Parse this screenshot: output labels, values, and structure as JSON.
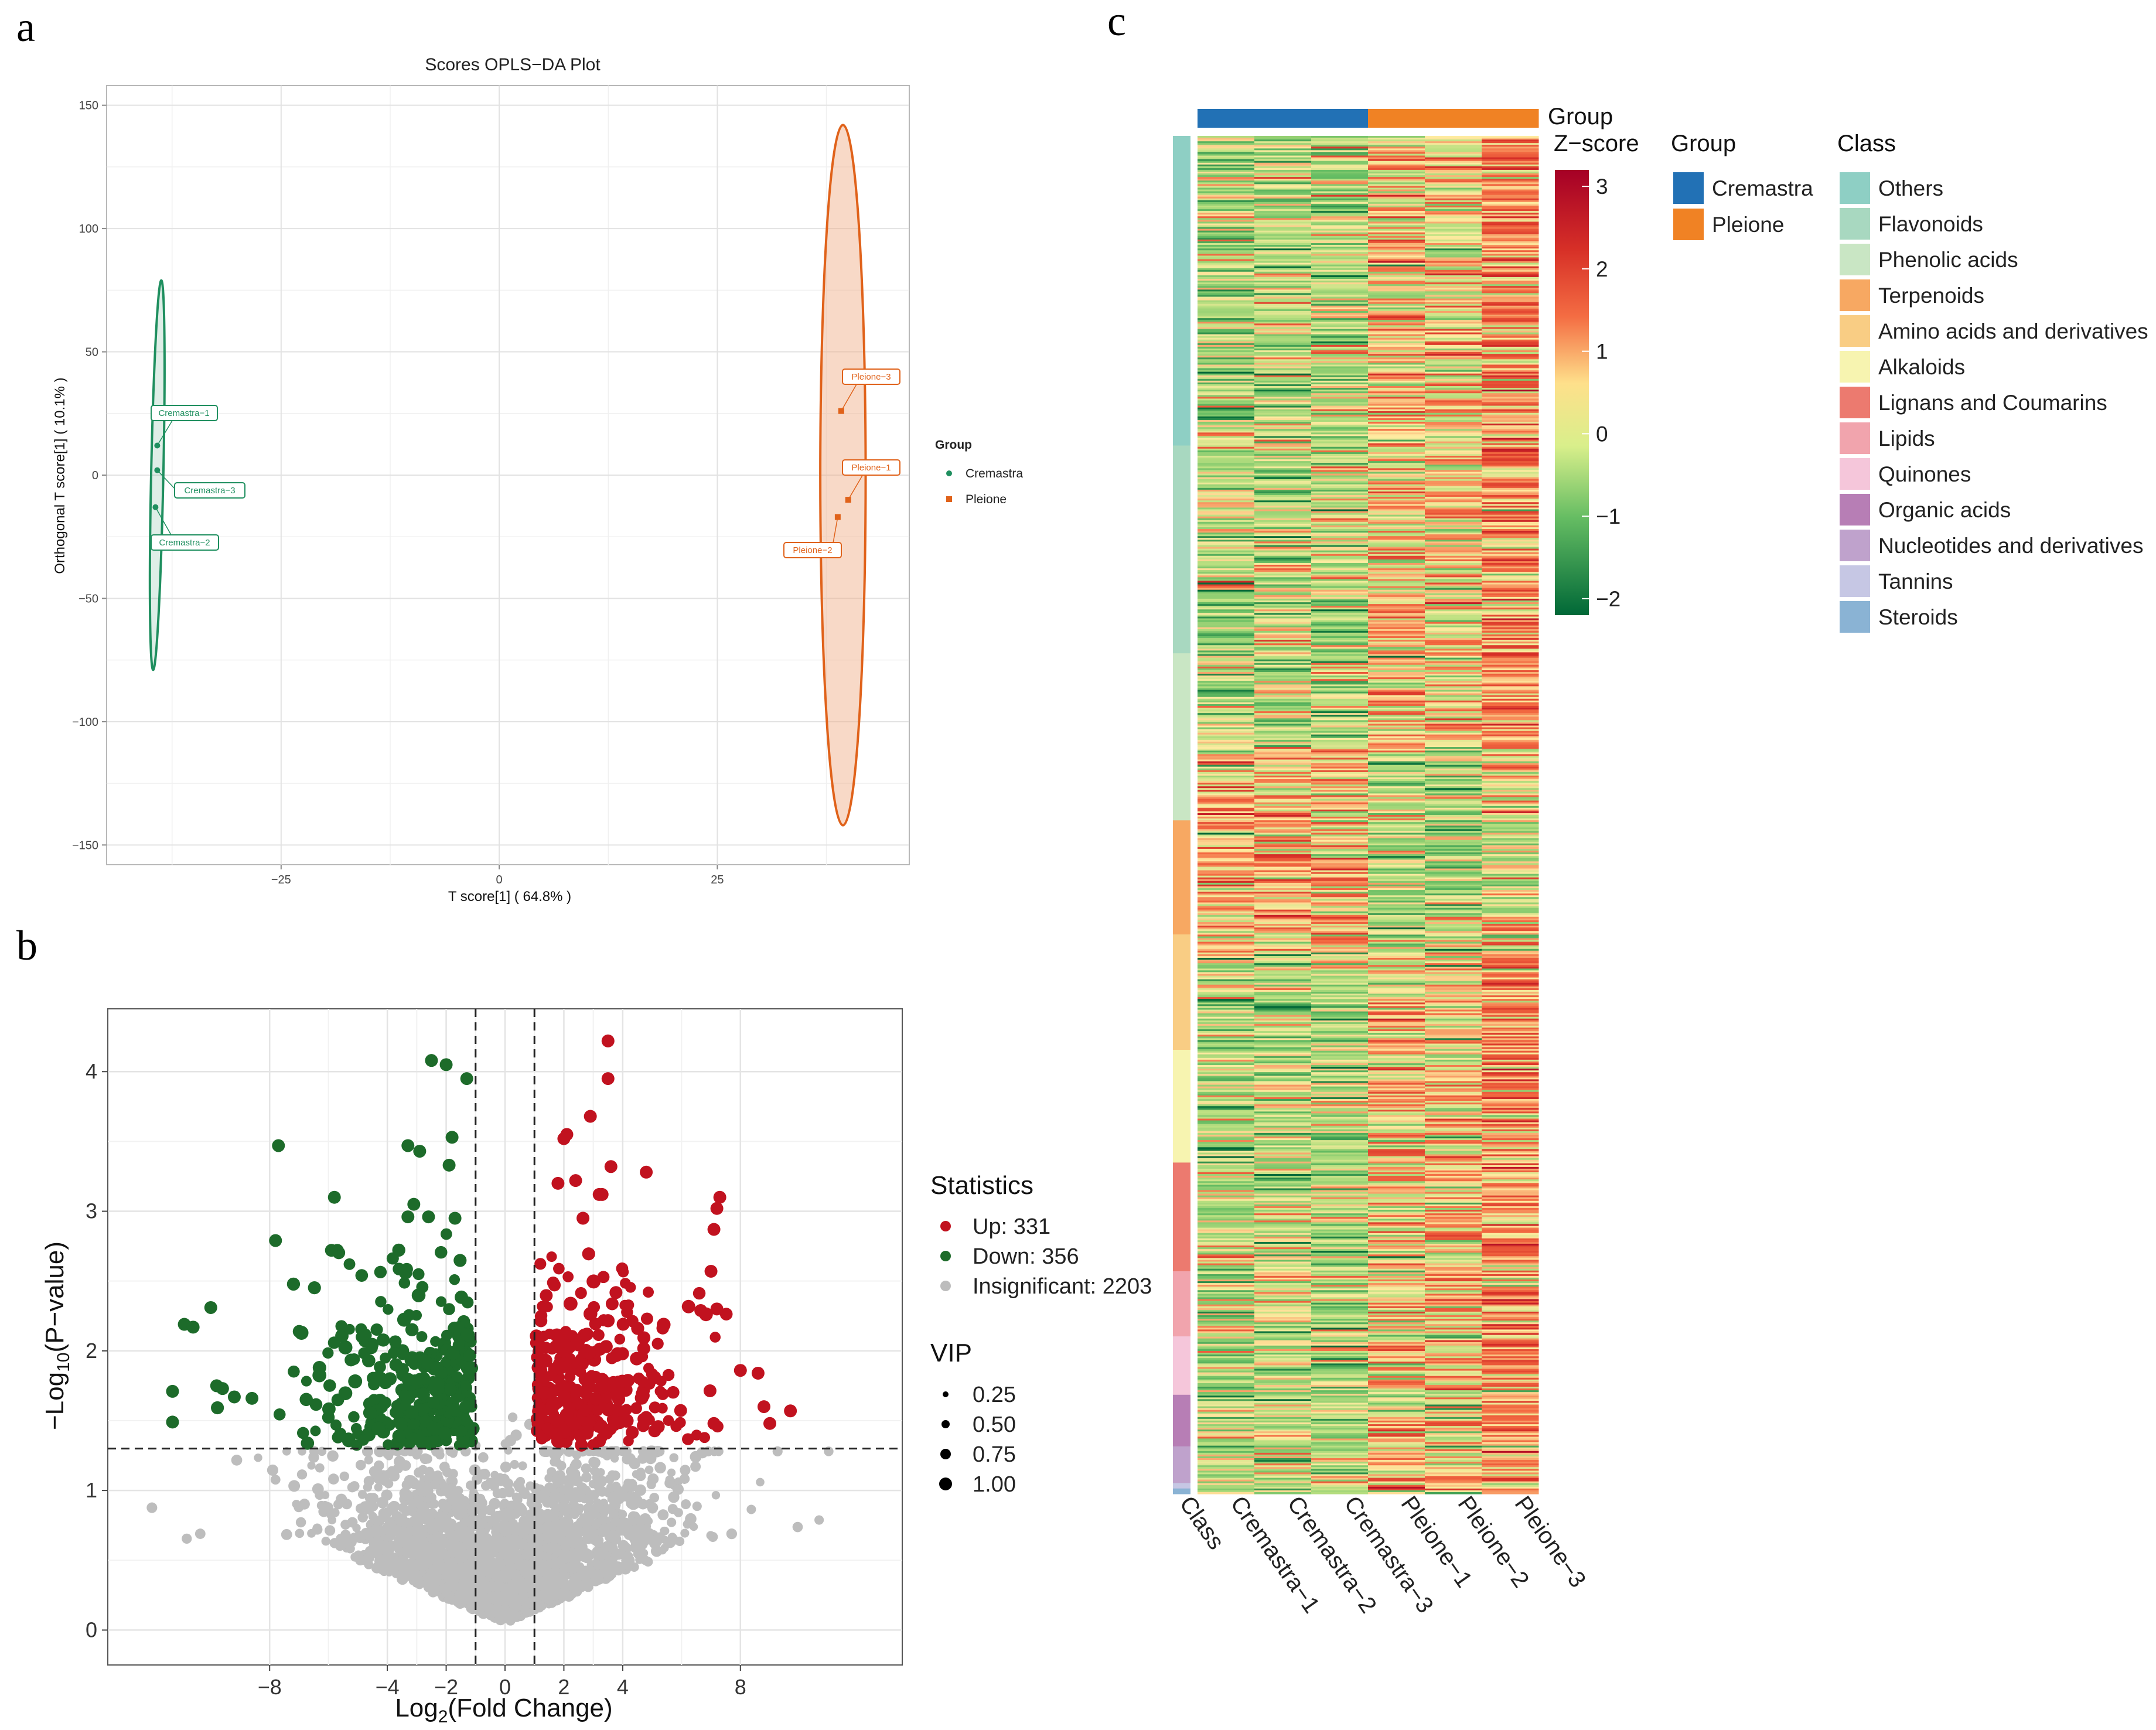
{
  "panels": {
    "a": "a",
    "b": "b",
    "c": "c"
  },
  "colors": {
    "cremastra": "#1f8f5f",
    "pleione": "#e0621a",
    "up": "#c1121f",
    "down": "#1d6b2a",
    "insignificant": "#bdbdbd",
    "group_cremastra": "#2271b5",
    "group_pleione": "#f08224"
  },
  "chart_data": [
    {
      "type": "scatter",
      "title": "Scores OPLS−DA Plot",
      "xlabel": "T score[1] ( 64.8% )",
      "ylabel": "Orthogonal T score[1] ( 10.1% )",
      "xlim": [
        -45,
        47
      ],
      "ylim": [
        -158,
        158
      ],
      "x_ticks": [
        -25,
        0,
        25
      ],
      "x_tick_labels": [
        "−25",
        "0",
        "25"
      ],
      "y_ticks": [
        150,
        100,
        50,
        0,
        -50,
        -100,
        -150
      ],
      "y_tick_labels": [
        "150",
        "100",
        "50",
        "0",
        "−50",
        "−100",
        "−150"
      ],
      "legend_title": "Group",
      "series": [
        {
          "name": "Cremastra",
          "points": [
            {
              "label": "Cremastra−1",
              "x": -39.2,
              "y": 12
            },
            {
              "label": "Cremastra−3",
              "x": -39.2,
              "y": 2
            },
            {
              "label": "Cremastra−2",
              "x": -39.4,
              "y": -13
            }
          ],
          "ellipse": {
            "cx": -39.2,
            "cy": 0,
            "ry": 79,
            "rx": 0.7
          }
        },
        {
          "name": "Pleione",
          "points": [
            {
              "label": "Pleione−3",
              "x": 39.2,
              "y": 26
            },
            {
              "label": "Pleione−1",
              "x": 40.0,
              "y": -10
            },
            {
              "label": "Pleione−2",
              "x": 38.8,
              "y": -17
            }
          ],
          "ellipse": {
            "cx": 39.4,
            "cy": 0,
            "ry": 142,
            "rx": 2.6
          }
        }
      ]
    },
    {
      "type": "scatter",
      "xlabel_main": "Log",
      "xlabel_sub": "2",
      "xlabel_rest": "(Fold Change)",
      "ylabel_pre": "−Log",
      "ylabel_sub": "10",
      "ylabel_rest": "(P−value)",
      "xlim": [
        -13.5,
        13.5
      ],
      "ylim": [
        -0.25,
        4.45
      ],
      "x_ticks": [
        -8,
        -4,
        -2,
        0,
        2,
        4,
        8
      ],
      "x_tick_labels": [
        "−8",
        "−4",
        "−2",
        "0",
        "2",
        "4",
        "8"
      ],
      "y_ticks": [
        0,
        1,
        2,
        3,
        4
      ],
      "y_tick_labels": [
        "0",
        "1",
        "2",
        "3",
        "4"
      ],
      "thresholds": {
        "log2fc": [
          -1,
          1
        ],
        "neglog10p": 1.3
      },
      "legend_stats_title": "Statistics",
      "legend_stats": [
        {
          "key": "up",
          "label": "Up: 331",
          "count": 331
        },
        {
          "key": "down",
          "label": "Down: 356",
          "count": 356
        },
        {
          "key": "insignificant",
          "label": "Insignificant: 2203",
          "count": 2203
        }
      ],
      "legend_vip_title": "VIP",
      "legend_vip": [
        "0.25",
        "0.50",
        "0.75",
        "1.00"
      ],
      "highlight_points": {
        "up": [
          [
            3.5,
            4.22
          ],
          [
            3.5,
            3.95
          ],
          [
            2.9,
            3.68
          ],
          [
            2.1,
            3.55
          ],
          [
            2.0,
            3.52
          ],
          [
            3.6,
            3.32
          ],
          [
            4.8,
            3.28
          ],
          [
            7.3,
            3.1
          ],
          [
            7.2,
            3.02
          ],
          [
            7.1,
            2.87
          ],
          [
            2.4,
            3.22
          ],
          [
            1.8,
            3.2
          ],
          [
            3.2,
            3.12
          ],
          [
            3.3,
            3.12
          ],
          [
            7.0,
            2.57
          ],
          [
            7.2,
            2.3
          ],
          [
            8.0,
            1.86
          ],
          [
            8.6,
            1.84
          ],
          [
            9.7,
            1.57
          ],
          [
            8.8,
            1.6
          ],
          [
            9.0,
            1.48
          ],
          [
            7.1,
            1.48
          ]
        ],
        "down": [
          [
            -2.5,
            4.08
          ],
          [
            -2.0,
            4.05
          ],
          [
            -1.3,
            3.95
          ],
          [
            -7.7,
            3.47
          ],
          [
            -3.3,
            3.47
          ],
          [
            -2.9,
            3.43
          ],
          [
            -1.8,
            3.53
          ],
          [
            -1.9,
            3.33
          ],
          [
            -5.8,
            3.1
          ],
          [
            -3.1,
            3.05
          ],
          [
            -3.3,
            2.96
          ],
          [
            -2.6,
            2.96
          ],
          [
            -1.7,
            2.95
          ],
          [
            -7.8,
            2.79
          ],
          [
            -5.7,
            2.72
          ],
          [
            -5.9,
            2.72
          ],
          [
            -10.0,
            2.31
          ],
          [
            -10.9,
            2.19
          ],
          [
            -10.6,
            2.17
          ],
          [
            -11.3,
            1.71
          ],
          [
            -11.3,
            1.49
          ],
          [
            -9.8,
            1.75
          ],
          [
            -9.6,
            1.73
          ],
          [
            -9.2,
            1.67
          ],
          [
            -8.6,
            1.66
          ]
        ]
      }
    },
    {
      "type": "heatmap",
      "columns": [
        "Class",
        "Cremastra−1",
        "Cremastra−2",
        "Cremastra−3",
        "Pleione−1",
        "Pleione−2",
        "Pleione−3"
      ],
      "group_row_label": "Group",
      "groups": [
        "Cremastra",
        "Cremastra",
        "Cremastra",
        "Pleione",
        "Pleione",
        "Pleione"
      ],
      "scale_title": "Z−score",
      "scale_ticks": [
        3,
        2,
        1,
        0,
        -1,
        -2
      ],
      "scale_tick_labels": [
        "3",
        "2",
        "1",
        "0",
        "−1",
        "−2"
      ],
      "scale_range": [
        -2.2,
        3.2
      ],
      "legend_group_title": "Group",
      "legend_group": [
        {
          "label": "Cremastra",
          "color": "#2271b5"
        },
        {
          "label": "Pleione",
          "color": "#f08224"
        }
      ],
      "legend_class_title": "Class",
      "classes": [
        {
          "label": "Others",
          "color": "#8ecfc4",
          "share": 0.228
        },
        {
          "label": "Flavonoids",
          "color": "#a8d8c0",
          "share": 0.153
        },
        {
          "label": "Phenolic acids",
          "color": "#c9e6c4",
          "share": 0.123
        },
        {
          "label": "Terpenoids",
          "color": "#f7a862",
          "share": 0.084
        },
        {
          "label": "Amino acids and derivatives",
          "color": "#f9cd84",
          "share": 0.085
        },
        {
          "label": "Alkaloids",
          "color": "#f7f4b0",
          "share": 0.083
        },
        {
          "label": "Lignans and Coumarins",
          "color": "#ec7a6f",
          "share": 0.08
        },
        {
          "label": "Lipids",
          "color": "#f1a4ad",
          "share": 0.048
        },
        {
          "label": "Quinones",
          "color": "#f5c6da",
          "share": 0.043
        },
        {
          "label": "Organic acids",
          "color": "#b77eb5",
          "share": 0.038
        },
        {
          "label": "Nucleotides and derivatives",
          "color": "#bfa2cc",
          "share": 0.027
        },
        {
          "label": "Tannins",
          "color": "#c6c7e4",
          "share": 0.004
        },
        {
          "label": "Steroids",
          "color": "#8ab3d4",
          "share": 0.004
        }
      ]
    }
  ]
}
